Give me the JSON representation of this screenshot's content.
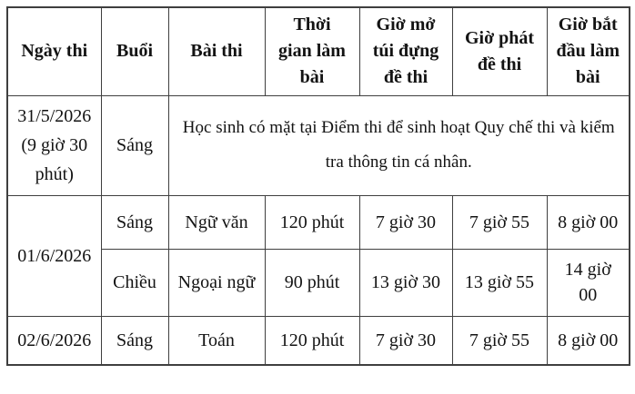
{
  "colors": {
    "background": "#ffffff",
    "border": "#3f3f3f",
    "text": "#131313"
  },
  "exam_table": {
    "columns": [
      {
        "label": "Ngày thi"
      },
      {
        "label": "Buổi"
      },
      {
        "label": "Bài thi"
      },
      {
        "label": "Thời\ngian làm\nbài"
      },
      {
        "label": "Giờ mở\ntúi đựng\nđề thi"
      },
      {
        "label": "Giờ phát\nđề thi"
      },
      {
        "label": "Giờ bắt\nđầu làm\nbài"
      }
    ],
    "orientation_row": {
      "date": "31/5/2026 (9 giờ 30 phút)",
      "session": "Sáng",
      "note": "Học sinh có mặt tại Điểm thi để sinh hoạt Quy chế thi và kiểm tra thông tin cá nhân."
    },
    "exam_rows": [
      {
        "date": "01/6/2026",
        "session": "Sáng",
        "subject": "Ngữ văn",
        "duration": "120 phút",
        "open_envelope_time": "7 giờ 30",
        "handout_time": "7 giờ 55",
        "start_time": "8 giờ 00"
      },
      {
        "session": "Chiều",
        "subject": "Ngoại ngữ",
        "duration": "90 phút",
        "open_envelope_time": "13 giờ 30",
        "handout_time": "13 giờ 55",
        "start_time": "14 giờ 00"
      },
      {
        "date": "02/6/2026",
        "session": "Sáng",
        "subject": "Toán",
        "duration": "120 phút",
        "open_envelope_time": "7 giờ 30",
        "handout_time": "7 giờ 55",
        "start_time": "8 giờ 00"
      }
    ]
  }
}
